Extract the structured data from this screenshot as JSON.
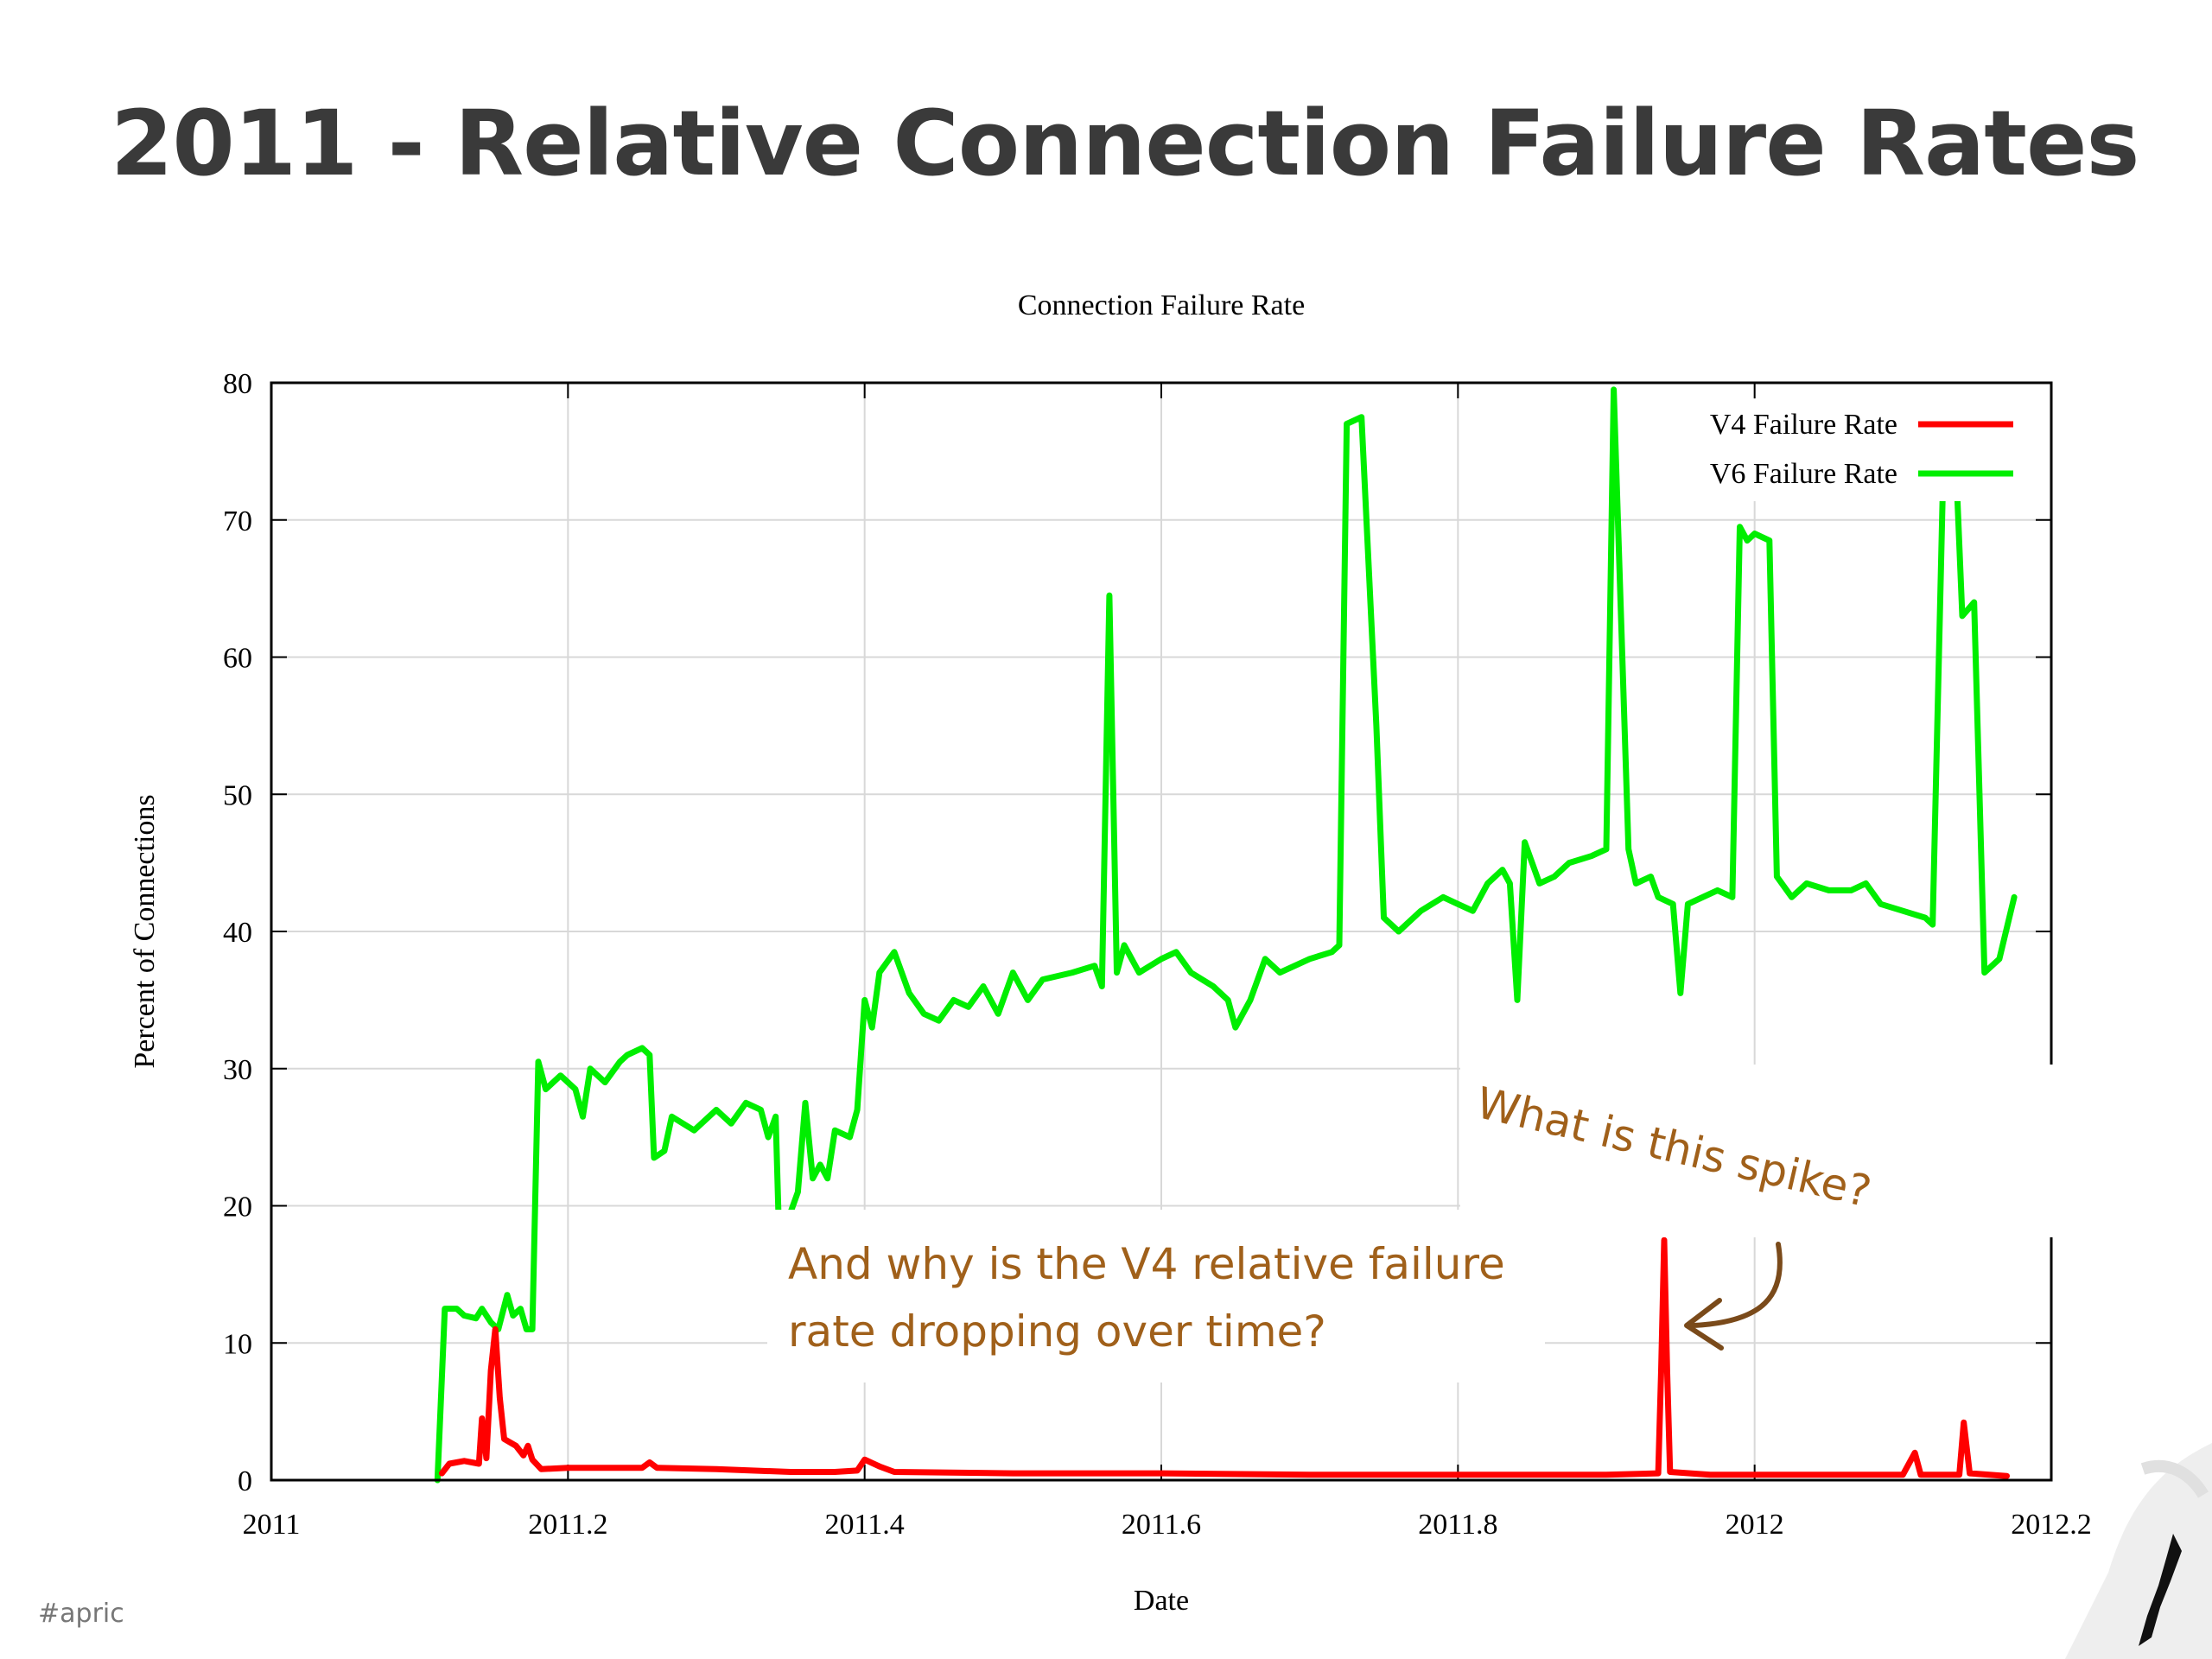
{
  "slide": {
    "title": "2011 - Relative Connection Failure Rates",
    "hashtag": "#apric"
  },
  "annotations": {
    "spike_question": "What is this spike?",
    "drop_question_line1": "And why is the V4 relative failure",
    "drop_question_line2": "rate dropping over time?"
  },
  "colors": {
    "v4": "#ff0000",
    "v6": "#00ee00",
    "annotation": "#a0601a",
    "title": "#3a3a3a"
  },
  "chart_data": {
    "type": "line",
    "title": "Connection Failure Rate",
    "xlabel": "Date",
    "ylabel": "Percent of Connections",
    "xlim": [
      2011,
      2012.2
    ],
    "ylim": [
      0,
      80
    ],
    "x_ticks": [
      "2011",
      "2011.2",
      "2011.4",
      "2011.6",
      "2011.8",
      "2012",
      "2012.2"
    ],
    "y_ticks": [
      "0",
      "10",
      "20",
      "30",
      "40",
      "50",
      "60",
      "70",
      "80"
    ],
    "grid": true,
    "legend_position": "top-right",
    "series": [
      {
        "name": "V4 Failure Rate",
        "color": "#ff0000",
        "points": [
          [
            2011.115,
            0.5
          ],
          [
            2011.12,
            1.2
          ],
          [
            2011.13,
            1.4
          ],
          [
            2011.14,
            1.2
          ],
          [
            2011.142,
            4.5
          ],
          [
            2011.145,
            1.6
          ],
          [
            2011.148,
            8
          ],
          [
            2011.151,
            11
          ],
          [
            2011.154,
            6
          ],
          [
            2011.157,
            3
          ],
          [
            2011.165,
            2.5
          ],
          [
            2011.17,
            1.8
          ],
          [
            2011.173,
            2.5
          ],
          [
            2011.176,
            1.5
          ],
          [
            2011.182,
            0.8
          ],
          [
            2011.2,
            0.9
          ],
          [
            2011.25,
            0.9
          ],
          [
            2011.255,
            1.3
          ],
          [
            2011.26,
            0.9
          ],
          [
            2011.3,
            0.8
          ],
          [
            2011.35,
            0.6
          ],
          [
            2011.38,
            0.6
          ],
          [
            2011.395,
            0.7
          ],
          [
            2011.4,
            1.5
          ],
          [
            2011.41,
            1.0
          ],
          [
            2011.42,
            0.6
          ],
          [
            2011.5,
            0.5
          ],
          [
            2011.6,
            0.5
          ],
          [
            2011.7,
            0.4
          ],
          [
            2011.8,
            0.4
          ],
          [
            2011.9,
            0.4
          ],
          [
            2011.935,
            0.5
          ],
          [
            2011.937,
            8
          ],
          [
            2011.939,
            17.5
          ],
          [
            2011.941,
            8
          ],
          [
            2011.943,
            0.6
          ],
          [
            2011.97,
            0.4
          ],
          [
            2012.0,
            0.4
          ],
          [
            2012.1,
            0.4
          ],
          [
            2012.108,
            2.0
          ],
          [
            2012.112,
            0.4
          ],
          [
            2012.138,
            0.4
          ],
          [
            2012.141,
            4.2
          ],
          [
            2012.145,
            0.5
          ],
          [
            2012.17,
            0.3
          ]
        ]
      },
      {
        "name": "V6 Failure Rate",
        "color": "#00ee00",
        "points": [
          [
            2011.112,
            0
          ],
          [
            2011.117,
            12.5
          ],
          [
            2011.125,
            12.5
          ],
          [
            2011.13,
            12
          ],
          [
            2011.138,
            11.8
          ],
          [
            2011.142,
            12.5
          ],
          [
            2011.148,
            11.5
          ],
          [
            2011.153,
            11
          ],
          [
            2011.159,
            13.5
          ],
          [
            2011.163,
            12
          ],
          [
            2011.168,
            12.5
          ],
          [
            2011.172,
            11
          ],
          [
            2011.176,
            11
          ],
          [
            2011.18,
            30.5
          ],
          [
            2011.185,
            28.5
          ],
          [
            2011.195,
            29.5
          ],
          [
            2011.205,
            28.5
          ],
          [
            2011.21,
            26.5
          ],
          [
            2011.215,
            30
          ],
          [
            2011.225,
            29
          ],
          [
            2011.235,
            30.5
          ],
          [
            2011.24,
            31
          ],
          [
            2011.25,
            31.5
          ],
          [
            2011.255,
            31
          ],
          [
            2011.258,
            23.5
          ],
          [
            2011.265,
            24
          ],
          [
            2011.27,
            26.5
          ],
          [
            2011.285,
            25.5
          ],
          [
            2011.3,
            27
          ],
          [
            2011.31,
            26
          ],
          [
            2011.32,
            27.5
          ],
          [
            2011.33,
            27
          ],
          [
            2011.335,
            25
          ],
          [
            2011.34,
            26.5
          ],
          [
            2011.342,
            19
          ],
          [
            2011.35,
            19.5
          ],
          [
            2011.355,
            21
          ],
          [
            2011.36,
            27.5
          ],
          [
            2011.365,
            22
          ],
          [
            2011.37,
            23
          ],
          [
            2011.375,
            22
          ],
          [
            2011.38,
            25.5
          ],
          [
            2011.39,
            25
          ],
          [
            2011.395,
            27
          ],
          [
            2011.4,
            35
          ],
          [
            2011.405,
            33
          ],
          [
            2011.41,
            37
          ],
          [
            2011.42,
            38.5
          ],
          [
            2011.43,
            35.5
          ],
          [
            2011.44,
            34
          ],
          [
            2011.45,
            33.5
          ],
          [
            2011.46,
            35
          ],
          [
            2011.47,
            34.5
          ],
          [
            2011.48,
            36
          ],
          [
            2011.49,
            34
          ],
          [
            2011.5,
            37
          ],
          [
            2011.51,
            35
          ],
          [
            2011.52,
            36.5
          ],
          [
            2011.54,
            37
          ],
          [
            2011.555,
            37.5
          ],
          [
            2011.56,
            36
          ],
          [
            2011.565,
            64.5
          ],
          [
            2011.57,
            37
          ],
          [
            2011.575,
            39
          ],
          [
            2011.585,
            37
          ],
          [
            2011.6,
            38
          ],
          [
            2011.61,
            38.5
          ],
          [
            2011.62,
            37
          ],
          [
            2011.635,
            36
          ],
          [
            2011.645,
            35
          ],
          [
            2011.65,
            33
          ],
          [
            2011.66,
            35
          ],
          [
            2011.67,
            38
          ],
          [
            2011.68,
            37
          ],
          [
            2011.7,
            38
          ],
          [
            2011.715,
            38.5
          ],
          [
            2011.72,
            39
          ],
          [
            2011.725,
            77
          ],
          [
            2011.735,
            77.5
          ],
          [
            2011.745,
            55
          ],
          [
            2011.75,
            41
          ],
          [
            2011.76,
            40
          ],
          [
            2011.775,
            41.5
          ],
          [
            2011.79,
            42.5
          ],
          [
            2011.8,
            42
          ],
          [
            2011.81,
            41.5
          ],
          [
            2011.82,
            43.5
          ],
          [
            2011.83,
            44.5
          ],
          [
            2011.835,
            43.5
          ],
          [
            2011.84,
            35
          ],
          [
            2011.845,
            46.5
          ],
          [
            2011.855,
            43.5
          ],
          [
            2011.865,
            44
          ],
          [
            2011.875,
            45
          ],
          [
            2011.89,
            45.5
          ],
          [
            2011.9,
            46
          ],
          [
            2011.905,
            79.5
          ],
          [
            2011.915,
            46
          ],
          [
            2011.92,
            43.5
          ],
          [
            2011.93,
            44
          ],
          [
            2011.935,
            42.5
          ],
          [
            2011.945,
            42
          ],
          [
            2011.95,
            35.5
          ],
          [
            2011.955,
            42
          ],
          [
            2011.965,
            42.5
          ],
          [
            2011.975,
            43
          ],
          [
            2011.985,
            42.5
          ],
          [
            2011.99,
            69.5
          ],
          [
            2011.995,
            68.5
          ],
          [
            2012.0,
            69
          ],
          [
            2012.01,
            68.5
          ],
          [
            2012.015,
            44
          ],
          [
            2012.025,
            42.5
          ],
          [
            2012.035,
            43.5
          ],
          [
            2012.05,
            43
          ],
          [
            2012.065,
            43
          ],
          [
            2012.075,
            43.5
          ],
          [
            2012.085,
            42
          ],
          [
            2012.1,
            41.5
          ],
          [
            2012.115,
            41
          ],
          [
            2012.12,
            40.5
          ],
          [
            2012.128,
            77.5
          ],
          [
            2012.135,
            76
          ],
          [
            2012.14,
            63
          ],
          [
            2012.148,
            64
          ],
          [
            2012.155,
            37
          ],
          [
            2012.165,
            38
          ],
          [
            2012.175,
            42.5
          ]
        ]
      }
    ]
  }
}
